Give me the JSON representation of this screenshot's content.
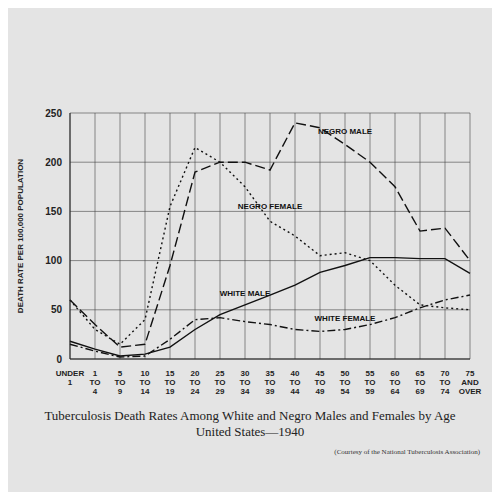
{
  "chart_data": {
    "type": "line",
    "title": "Tuberculosis Death Rates Among White and Negro Males and Females by Age",
    "subtitle": "United States—1940",
    "y_label": "DEATH RATE PER 100,000 POPULATION",
    "annotations": [
      "(Courtesy of the National Tuberculosis Association)"
    ],
    "categories": [
      "UNDER 1",
      "1 TO 4",
      "5 TO 9",
      "10 TO 14",
      "15 TO 19",
      "20 TO 24",
      "25 TO 29",
      "30 TO 34",
      "35 TO 39",
      "40 TO 44",
      "45 TO 49",
      "50 TO 54",
      "55 TO 59",
      "60 TO 64",
      "65 TO 69",
      "70 TO 74",
      "75 AND OVER"
    ],
    "series": [
      {
        "name": "NEGRO MALE",
        "color": "#111111",
        "line_style": "dashed",
        "values": [
          60,
          35,
          12,
          15,
          95,
          190,
          200,
          200,
          192,
          240,
          235,
          218,
          200,
          175,
          130,
          133,
          100
        ]
      },
      {
        "name": "NEGRO FEMALE",
        "color": "#111111",
        "line_style": "dotted",
        "values": [
          60,
          30,
          15,
          40,
          155,
          215,
          200,
          175,
          140,
          125,
          105,
          108,
          100,
          75,
          55,
          52,
          50
        ]
      },
      {
        "name": "WHITE MALE",
        "color": "#111111",
        "line_style": "solid",
        "values": [
          18,
          10,
          3,
          5,
          12,
          30,
          45,
          55,
          65,
          75,
          88,
          95,
          103,
          103,
          102,
          102,
          87
        ]
      },
      {
        "name": "WHITE FEMALE",
        "color": "#111111",
        "line_style": "dashdot",
        "values": [
          15,
          8,
          2,
          3,
          20,
          40,
          42,
          38,
          35,
          30,
          28,
          30,
          35,
          42,
          52,
          60,
          65
        ]
      }
    ],
    "ylim": [
      0,
      250
    ],
    "yticks": [
      0,
      50,
      100,
      150,
      200,
      250
    ],
    "grid": true
  }
}
